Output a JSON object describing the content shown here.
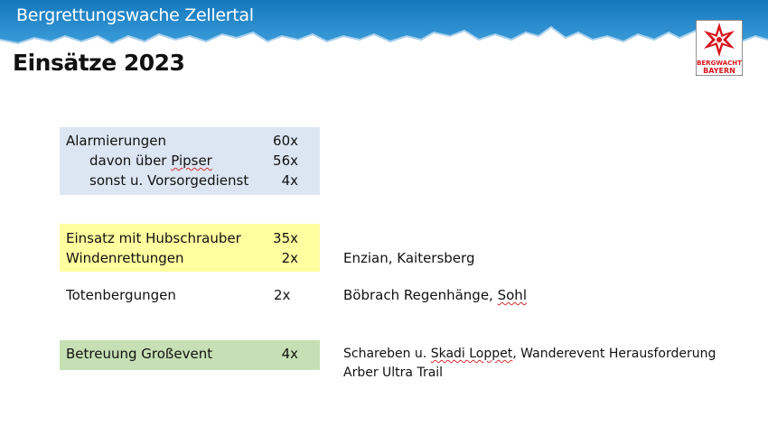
{
  "header": {
    "banner_title": "Bergrettungswache Zellertal",
    "page_title": "Einsätze 2023",
    "logo_text_top": "BERGWACHT",
    "logo_text_bottom": "BAYERN"
  },
  "colors": {
    "banner_blue": "#1a86c8",
    "block_blue": "#dce6f2",
    "block_yellow": "#ffff9f",
    "block_green": "#c6dfb4"
  },
  "alarm": {
    "label": "Alarmierungen",
    "value": "60x",
    "sub1_label_a": "davon über ",
    "sub1_label_b": "Pipser",
    "sub1_value": "56x",
    "sub2_label": "sonst u. Vorsorgedienst",
    "sub2_value": "4x"
  },
  "heli": {
    "label": "Einsatz mit Hubschrauber",
    "value": "35x",
    "winch_label": "Windenrettungen",
    "winch_value": "2x",
    "winch_note": "Enzian, Kaitersberg"
  },
  "deaths": {
    "label": "Totenbergungen",
    "value": "2x",
    "note_a": "Böbrach Regenhänge, ",
    "note_b": "Sohl"
  },
  "events": {
    "label": "Betreuung Großevent",
    "value": "4x",
    "note1_a": "Schareben u. ",
    "note1_b": "Skadi Loppet",
    "note1_c": ", Wanderevent Herausforderung",
    "note2": "Arber Ultra Trail"
  }
}
